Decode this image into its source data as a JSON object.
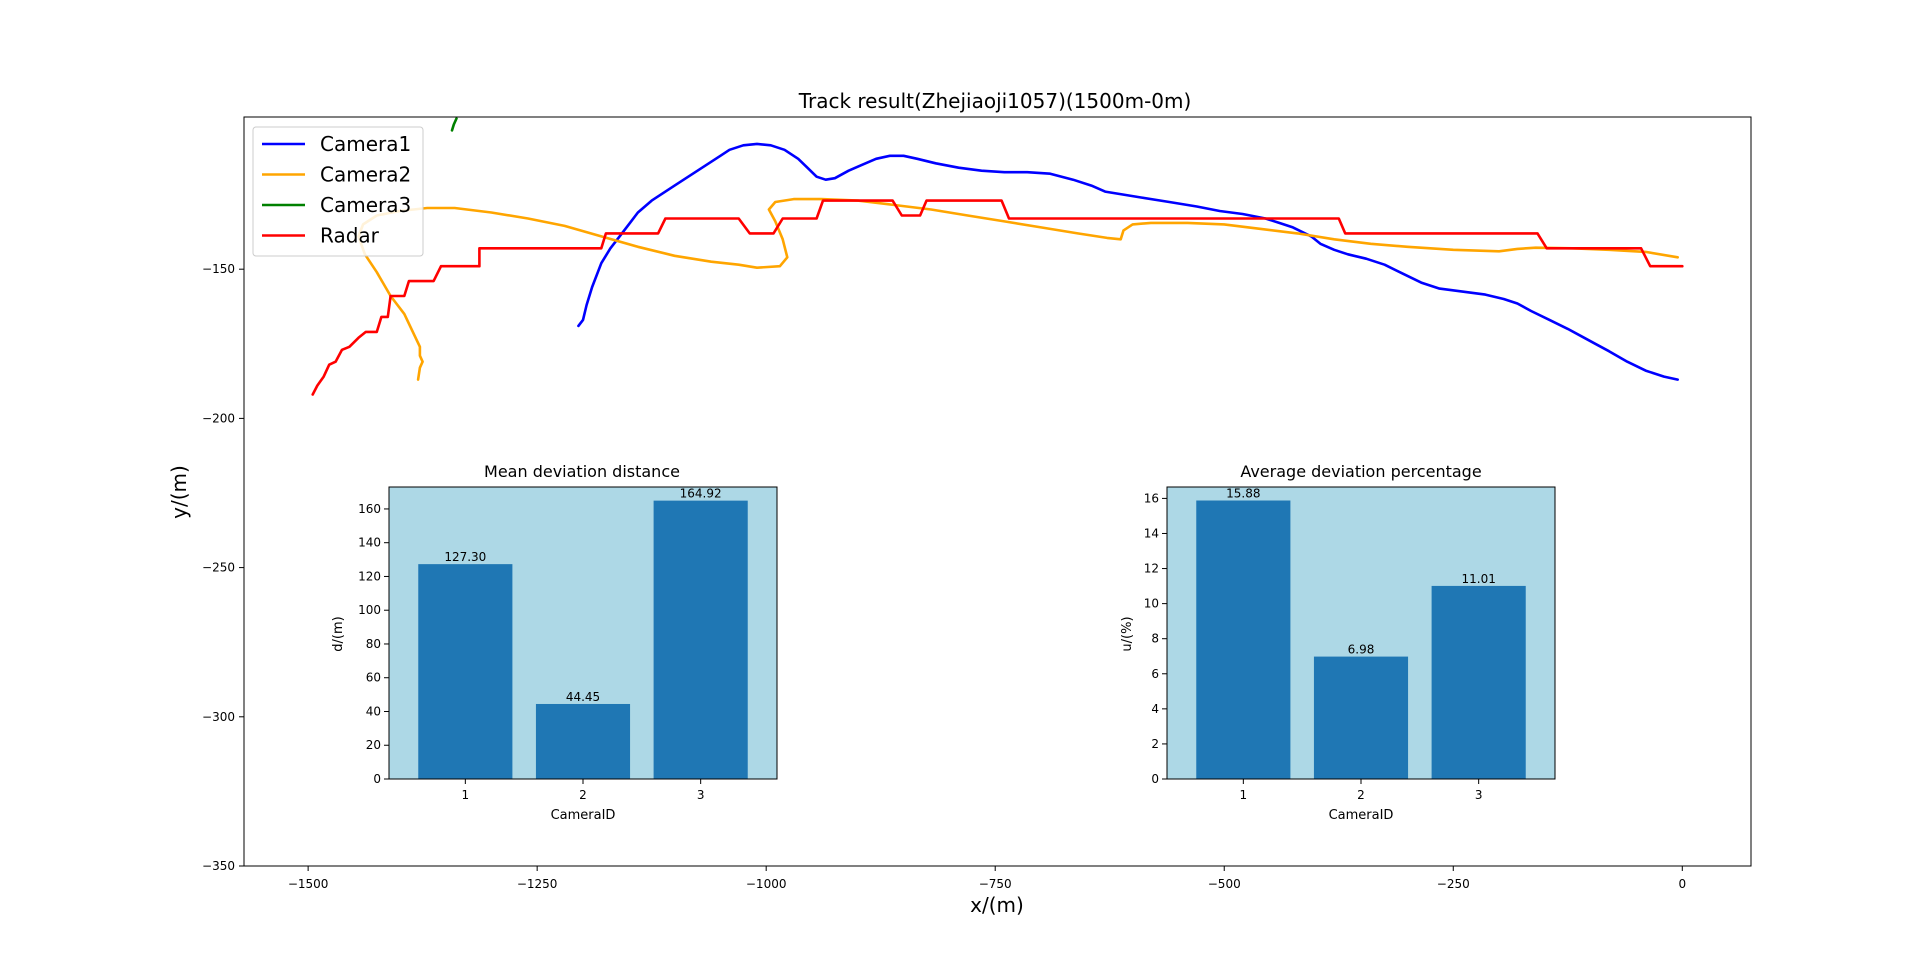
{
  "chart_data": [
    {
      "type": "line",
      "title": "Track result(Zhejiaoji1057)(1500m-0m)",
      "xlabel": "x/(m)",
      "ylabel": "y/(m)",
      "xlim": [
        -1570,
        75
      ],
      "ylim": [
        -350,
        -99
      ],
      "xticks": [
        -1500,
        -1250,
        -1000,
        -750,
        -500,
        -250,
        0
      ],
      "xtick_labels": [
        "−1500",
        "−1250",
        "−1000",
        "−750",
        "−500",
        "−250",
        "0"
      ],
      "yticks": [
        -150,
        -200,
        -250,
        -300,
        -350
      ],
      "ytick_labels": [
        "−150",
        "−200",
        "−250",
        "−300",
        "−350"
      ],
      "grid": false,
      "legend_position": "top-left",
      "series": [
        {
          "name": "Camera1",
          "color": "#0000ff",
          "points": [
            [
              -1205,
              -169
            ],
            [
              -1200,
              -167
            ],
            [
              -1196,
              -162
            ],
            [
              -1190,
              -156
            ],
            [
              -1180,
              -148
            ],
            [
              -1170,
              -143
            ],
            [
              -1160,
              -139
            ],
            [
              -1150,
              -135
            ],
            [
              -1140,
              -131
            ],
            [
              -1125,
              -127
            ],
            [
              -1100,
              -122
            ],
            [
              -1075,
              -117
            ],
            [
              -1050,
              -112
            ],
            [
              -1040,
              -110
            ],
            [
              -1025,
              -108.5
            ],
            [
              -1010,
              -108
            ],
            [
              -995,
              -108.5
            ],
            [
              -980,
              -110
            ],
            [
              -965,
              -113
            ],
            [
              -955,
              -116
            ],
            [
              -945,
              -119
            ],
            [
              -935,
              -120
            ],
            [
              -925,
              -119.5
            ],
            [
              -910,
              -117
            ],
            [
              -895,
              -115
            ],
            [
              -880,
              -113
            ],
            [
              -865,
              -112
            ],
            [
              -850,
              -112
            ],
            [
              -835,
              -113
            ],
            [
              -815,
              -114.5
            ],
            [
              -790,
              -116
            ],
            [
              -765,
              -117
            ],
            [
              -740,
              -117.5
            ],
            [
              -715,
              -117.5
            ],
            [
              -690,
              -118
            ],
            [
              -665,
              -120
            ],
            [
              -645,
              -122
            ],
            [
              -630,
              -124
            ],
            [
              -610,
              -125
            ],
            [
              -590,
              -126
            ],
            [
              -560,
              -127.5
            ],
            [
              -530,
              -129
            ],
            [
              -505,
              -130.5
            ],
            [
              -480,
              -131.5
            ],
            [
              -455,
              -133
            ],
            [
              -440,
              -134.5
            ],
            [
              -425,
              -136
            ],
            [
              -415,
              -137.5
            ],
            [
              -405,
              -139
            ],
            [
              -395,
              -141.5
            ],
            [
              -380,
              -143.5
            ],
            [
              -365,
              -145
            ],
            [
              -345,
              -146.5
            ],
            [
              -325,
              -148.5
            ],
            [
              -305,
              -151.5
            ],
            [
              -285,
              -154.5
            ],
            [
              -265,
              -156.5
            ],
            [
              -240,
              -157.5
            ],
            [
              -215,
              -158.5
            ],
            [
              -195,
              -160
            ],
            [
              -180,
              -161.5
            ],
            [
              -165,
              -164
            ],
            [
              -145,
              -167
            ],
            [
              -125,
              -170
            ],
            [
              -110,
              -172.5
            ],
            [
              -95,
              -175
            ],
            [
              -80,
              -177.5
            ],
            [
              -60,
              -181
            ],
            [
              -40,
              -184
            ],
            [
              -20,
              -186
            ],
            [
              -5,
              -187
            ]
          ]
        },
        {
          "name": "Camera2",
          "color": "#ffa500",
          "points": [
            [
              -1380,
              -187
            ],
            [
              -1378,
              -183
            ],
            [
              -1375,
              -181
            ],
            [
              -1378,
              -179
            ],
            [
              -1378,
              -176
            ],
            [
              -1395,
              -165
            ],
            [
              -1410,
              -159
            ],
            [
              -1425,
              -151
            ],
            [
              -1438,
              -145
            ],
            [
              -1445,
              -139
            ],
            [
              -1440,
              -135
            ],
            [
              -1425,
              -132
            ],
            [
              -1400,
              -130.5
            ],
            [
              -1370,
              -129.5
            ],
            [
              -1340,
              -129.5
            ],
            [
              -1300,
              -131
            ],
            [
              -1260,
              -133
            ],
            [
              -1220,
              -135.5
            ],
            [
              -1180,
              -139
            ],
            [
              -1140,
              -142.5
            ],
            [
              -1100,
              -145.5
            ],
            [
              -1060,
              -147.5
            ],
            [
              -1030,
              -148.5
            ],
            [
              -1010,
              -149.5
            ],
            [
              -985,
              -149
            ],
            [
              -977,
              -146
            ],
            [
              -982,
              -140
            ],
            [
              -990,
              -134
            ],
            [
              -997,
              -130
            ],
            [
              -990,
              -127.5
            ],
            [
              -970,
              -126.5
            ],
            [
              -940,
              -126.5
            ],
            [
              -900,
              -127
            ],
            [
              -860,
              -128.5
            ],
            [
              -820,
              -130
            ],
            [
              -780,
              -132
            ],
            [
              -740,
              -134
            ],
            [
              -700,
              -136
            ],
            [
              -660,
              -138
            ],
            [
              -628,
              -139.5
            ],
            [
              -613,
              -140
            ],
            [
              -610,
              -137
            ],
            [
              -600,
              -135
            ],
            [
              -580,
              -134.5
            ],
            [
              -540,
              -134.5
            ],
            [
              -500,
              -135
            ],
            [
              -460,
              -136.5
            ],
            [
              -420,
              -138
            ],
            [
              -380,
              -140
            ],
            [
              -340,
              -141.5
            ],
            [
              -300,
              -142.5
            ],
            [
              -250,
              -143.5
            ],
            [
              -200,
              -144
            ],
            [
              -180,
              -143.2
            ],
            [
              -160,
              -142.8
            ],
            [
              -120,
              -143
            ],
            [
              -80,
              -143.5
            ],
            [
              -40,
              -144.2
            ],
            [
              -5,
              -146
            ]
          ]
        },
        {
          "name": "Camera3",
          "color": "#008000",
          "points": [
            [
              -1343,
              -103.5
            ],
            [
              -1341,
              -101.5
            ],
            [
              -1338,
              -99.5
            ]
          ]
        },
        {
          "name": "Radar",
          "color": "#ff0000",
          "points": [
            [
              -1495,
              -192
            ],
            [
              -1490,
              -189
            ],
            [
              -1483,
              -186
            ],
            [
              -1477,
              -182
            ],
            [
              -1470,
              -181
            ],
            [
              -1463,
              -177
            ],
            [
              -1455,
              -176
            ],
            [
              -1445,
              -173
            ],
            [
              -1437,
              -171
            ],
            [
              -1425,
              -171
            ],
            [
              -1420,
              -166
            ],
            [
              -1413,
              -166
            ],
            [
              -1410,
              -159
            ],
            [
              -1395,
              -159
            ],
            [
              -1390,
              -154
            ],
            [
              -1363,
              -154
            ],
            [
              -1355,
              -149
            ],
            [
              -1313,
              -149
            ],
            [
              -1313,
              -143
            ],
            [
              -1180,
              -143
            ],
            [
              -1175,
              -138
            ],
            [
              -1118,
              -138
            ],
            [
              -1110,
              -133
            ],
            [
              -1030,
              -133
            ],
            [
              -1018,
              -138
            ],
            [
              -992,
              -138
            ],
            [
              -982,
              -133
            ],
            [
              -945,
              -133
            ],
            [
              -938,
              -127
            ],
            [
              -862,
              -127
            ],
            [
              -852,
              -132
            ],
            [
              -832,
              -132
            ],
            [
              -825,
              -127
            ],
            [
              -743,
              -127
            ],
            [
              -735,
              -133
            ],
            [
              -375,
              -133
            ],
            [
              -368,
              -138
            ],
            [
              -158,
              -138
            ],
            [
              -148,
              -143
            ],
            [
              -45,
              -143
            ],
            [
              -35,
              -149
            ],
            [
              0,
              -149
            ]
          ]
        }
      ]
    },
    {
      "type": "bar",
      "title": "Mean deviation distance",
      "xlabel": "CameraID",
      "ylabel": "d/(m)",
      "categories": [
        "1",
        "2",
        "3"
      ],
      "values": [
        127.3,
        44.45,
        164.92
      ],
      "value_labels": [
        "127.30",
        "44.45",
        "164.92"
      ],
      "ylim": [
        0,
        173
      ],
      "yticks": [
        0,
        20,
        40,
        60,
        80,
        100,
        120,
        140,
        160
      ],
      "ytick_labels": [
        "0",
        "20",
        "40",
        "60",
        "80",
        "100",
        "120",
        "140",
        "160"
      ],
      "bar_color": "#1f77b4",
      "background": "#add8e6"
    },
    {
      "type": "bar",
      "title": "Average deviation percentage",
      "xlabel": "CameraID",
      "ylabel": "u/(%)",
      "categories": [
        "1",
        "2",
        "3"
      ],
      "values": [
        15.88,
        6.98,
        11.01
      ],
      "value_labels": [
        "15.88",
        "6.98",
        "11.01"
      ],
      "ylim": [
        0,
        16.65
      ],
      "yticks": [
        0,
        2,
        4,
        6,
        8,
        10,
        12,
        14,
        16
      ],
      "ytick_labels": [
        "0",
        "2",
        "4",
        "6",
        "8",
        "10",
        "12",
        "14",
        "16"
      ],
      "bar_color": "#1f77b4",
      "background": "#add8e6"
    }
  ]
}
